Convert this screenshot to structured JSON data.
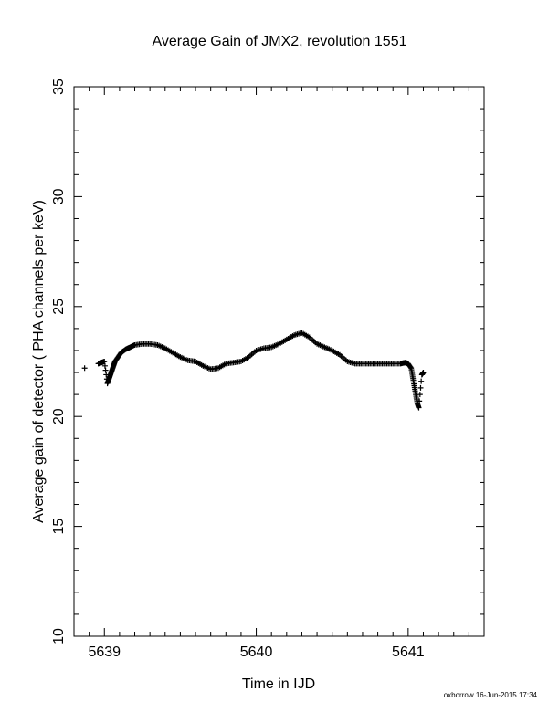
{
  "chart_data": {
    "type": "scatter",
    "title": "Average Gain of JMX2, revolution 1551",
    "xlabel": "Time in IJD",
    "ylabel": "Average gain of detector ( PHA channels per keV)",
    "xlim": [
      5638.8,
      5641.5
    ],
    "ylim": [
      10,
      35
    ],
    "x_ticks": [
      "5639",
      "5640",
      "5641"
    ],
    "y_ticks": [
      "10",
      "15",
      "20",
      "25",
      "30",
      "35"
    ],
    "marker": "+",
    "grid": false,
    "series": [
      {
        "points": [
          [
            5638.87,
            22.2
          ],
          [
            5638.96,
            22.4
          ],
          [
            5638.98,
            22.45
          ],
          [
            5639.0,
            22.5
          ],
          [
            5639.02,
            21.5
          ],
          [
            5639.03,
            21.7
          ],
          [
            5639.04,
            21.9
          ],
          [
            5639.05,
            22.1
          ],
          [
            5639.06,
            22.3
          ],
          [
            5639.07,
            22.5
          ],
          [
            5639.09,
            22.7
          ],
          [
            5639.11,
            22.9
          ],
          [
            5639.14,
            23.05
          ],
          [
            5639.17,
            23.15
          ],
          [
            5639.2,
            23.25
          ],
          [
            5639.25,
            23.3
          ],
          [
            5639.3,
            23.3
          ],
          [
            5639.35,
            23.25
          ],
          [
            5639.4,
            23.1
          ],
          [
            5639.45,
            22.9
          ],
          [
            5639.5,
            22.7
          ],
          [
            5639.55,
            22.55
          ],
          [
            5639.6,
            22.5
          ],
          [
            5639.65,
            22.3
          ],
          [
            5639.7,
            22.15
          ],
          [
            5639.75,
            22.2
          ],
          [
            5639.8,
            22.4
          ],
          [
            5639.85,
            22.45
          ],
          [
            5639.9,
            22.5
          ],
          [
            5639.95,
            22.7
          ],
          [
            5640.0,
            23.0
          ],
          [
            5640.05,
            23.1
          ],
          [
            5640.1,
            23.15
          ],
          [
            5640.15,
            23.3
          ],
          [
            5640.2,
            23.5
          ],
          [
            5640.25,
            23.7
          ],
          [
            5640.3,
            23.8
          ],
          [
            5640.35,
            23.6
          ],
          [
            5640.4,
            23.3
          ],
          [
            5640.45,
            23.15
          ],
          [
            5640.5,
            23.0
          ],
          [
            5640.55,
            22.8
          ],
          [
            5640.6,
            22.5
          ],
          [
            5640.65,
            22.4
          ],
          [
            5640.7,
            22.4
          ],
          [
            5640.75,
            22.4
          ],
          [
            5640.8,
            22.4
          ],
          [
            5640.85,
            22.4
          ],
          [
            5640.9,
            22.4
          ],
          [
            5640.95,
            22.4
          ],
          [
            5640.98,
            22.45
          ],
          [
            5641.0,
            22.4
          ],
          [
            5641.02,
            22.2
          ],
          [
            5641.03,
            21.8
          ],
          [
            5641.04,
            21.4
          ],
          [
            5641.05,
            21.0
          ],
          [
            5641.06,
            20.6
          ],
          [
            5641.07,
            20.4
          ],
          [
            5641.09,
            21.9
          ],
          [
            5641.1,
            22.0
          ]
        ]
      }
    ]
  },
  "footer": "oxborrow 16-Jun-2015 17:34"
}
